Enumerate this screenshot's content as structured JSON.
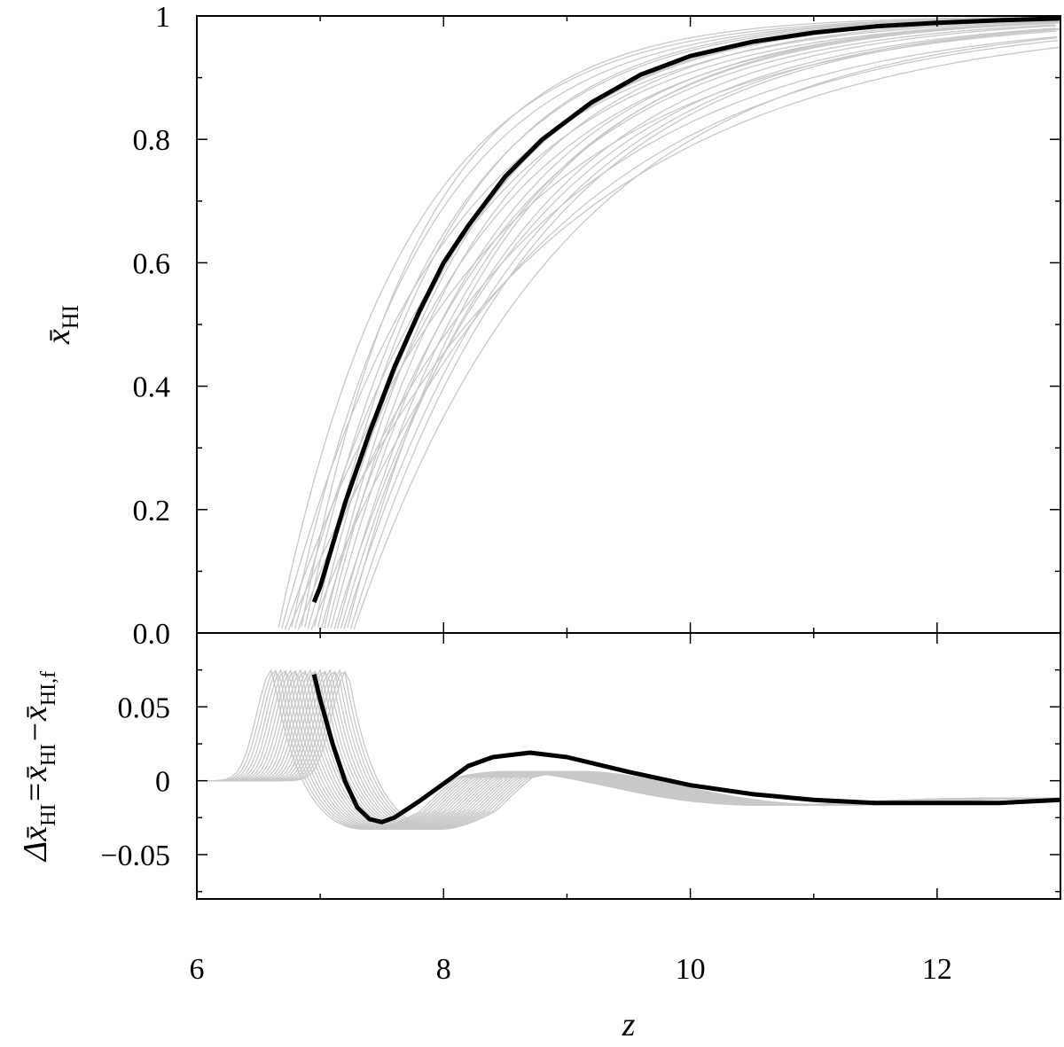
{
  "chart_data": [
    {
      "type": "line",
      "panel": "top",
      "xlim": [
        6,
        13
      ],
      "ylim": [
        0,
        1
      ],
      "xticks": [
        6,
        8,
        10,
        12
      ],
      "yticks": [
        0,
        0.2,
        0.4,
        0.6,
        0.8,
        1
      ],
      "ytick_labels": [
        "0.0",
        "0.2",
        "0.4",
        "0.6",
        "0.8",
        "1"
      ],
      "ylabel": {
        "main": "x̄",
        "sub": "HI"
      },
      "grid": false,
      "legend": "none",
      "colors": {
        "highlight": "#000000",
        "ensemble": "#c8c8c8"
      },
      "series": [
        {
          "x": [
            6.95,
            7.0,
            7.2,
            7.4,
            7.6,
            7.8,
            8.0,
            8.2,
            8.5,
            8.8,
            9.2,
            9.6,
            10.0,
            10.5,
            11.0,
            11.5,
            12.0,
            12.5,
            13.0
          ],
          "values": [
            0.05,
            0.075,
            0.21,
            0.325,
            0.43,
            0.52,
            0.6,
            0.66,
            0.74,
            0.8,
            0.86,
            0.905,
            0.935,
            0.958,
            0.973,
            0.983,
            0.989,
            0.993,
            0.996
          ]
        }
      ],
      "ensemble_count": 24,
      "ensemble_start_z_range": [
        6.55,
        7.3
      ]
    },
    {
      "type": "line",
      "panel": "bottom",
      "xlim": [
        6,
        13
      ],
      "ylim": [
        -0.08,
        0.1
      ],
      "xticks": [
        6,
        8,
        10,
        12
      ],
      "yticks": [
        -0.05,
        0,
        0.05
      ],
      "ytick_labels": [
        "−0.05",
        "0",
        "0.05"
      ],
      "ylabel": {
        "main": "Δx̄",
        "sub1": "HI",
        "eq": "=x̄",
        "sub2": "HI",
        "minus": "−x̄",
        "sub3": "HI,f"
      },
      "xlabel": "z",
      "grid": false,
      "legend": "none",
      "series": [
        {
          "x": [
            6.95,
            7.0,
            7.1,
            7.2,
            7.3,
            7.4,
            7.5,
            7.6,
            7.8,
            8.0,
            8.2,
            8.4,
            8.7,
            9.0,
            9.5,
            10.0,
            10.5,
            11.0,
            11.5,
            12.0,
            12.5,
            13.0
          ],
          "values": [
            0.072,
            0.055,
            0.025,
            0.0,
            -0.018,
            -0.026,
            -0.028,
            -0.025,
            -0.014,
            -0.002,
            0.01,
            0.016,
            0.019,
            0.016,
            0.006,
            -0.003,
            -0.009,
            -0.013,
            -0.015,
            -0.015,
            -0.015,
            -0.013
          ]
        }
      ]
    }
  ]
}
